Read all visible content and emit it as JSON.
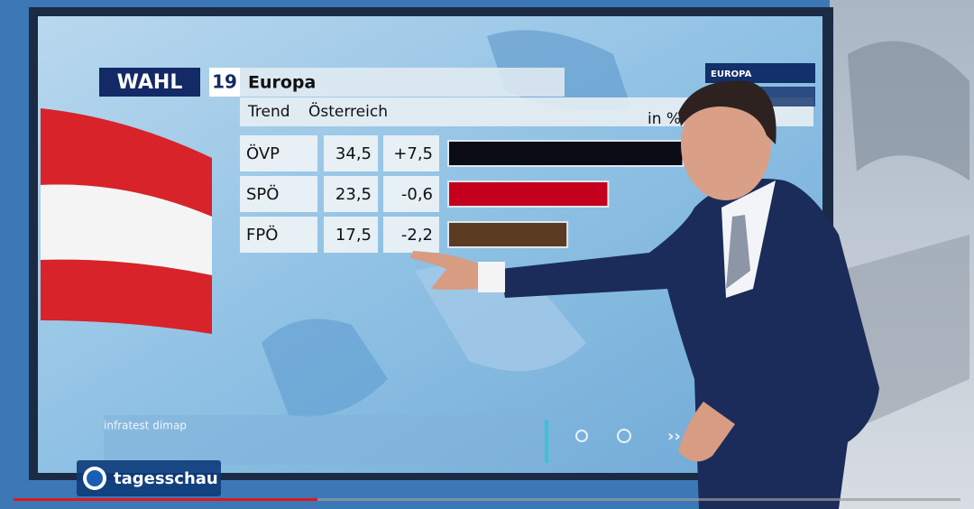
{
  "chart_data": {
    "type": "bar",
    "brand": "WAHL",
    "edition": "19",
    "title": "Europa",
    "subtitle": "Trend",
    "region": "Österreich",
    "unit": "in %",
    "categories": [
      "ÖVP",
      "SPÖ",
      "FPÖ"
    ],
    "series": [
      {
        "values": [
          34.5,
          23.5,
          17.5
        ],
        "value_labels": [
          "34,5",
          "23,5",
          "17,5"
        ],
        "colors": [
          "#0b0b16",
          "#c4001c",
          "#5b3b22"
        ]
      }
    ],
    "changes": [
      "+7,5",
      "-0,6",
      "-2,2"
    ],
    "source": "infratest dimap",
    "menu": [
      "EUROPA"
    ]
  },
  "channel": "tagesschau"
}
